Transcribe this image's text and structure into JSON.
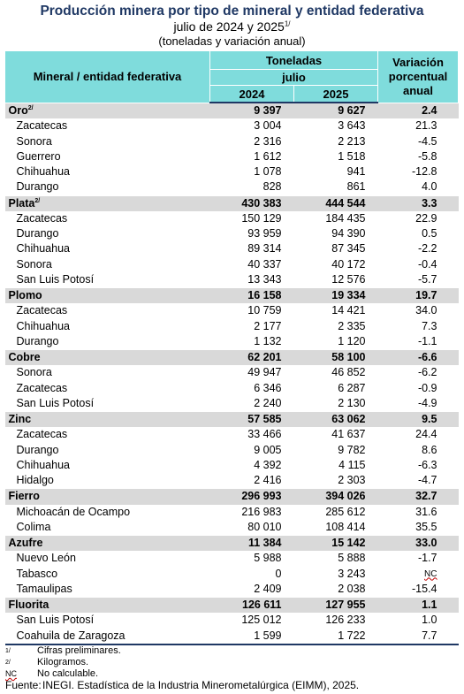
{
  "header": {
    "title": "Producción minera por tipo de mineral y entidad federativa",
    "subtitle": "julio de 2024 y 2025",
    "subtitle_note": "1/",
    "units": "(toneladas y variación anual)"
  },
  "columns": {
    "mineral": "Mineral / entidad federativa",
    "toneladas": "Toneladas",
    "month": "julio",
    "y2024": "2024",
    "y2025": "2025",
    "variacion": "Variación porcentual anual"
  },
  "groups": [
    {
      "name": "Oro",
      "note": "2/",
      "v2024": "9 397",
      "v2025": "9 627",
      "var": "2.4",
      "rows": [
        {
          "name": "Zacatecas",
          "v2024": "3 004",
          "v2025": "3 643",
          "var": "21.3"
        },
        {
          "name": "Sonora",
          "v2024": "2 316",
          "v2025": "2 213",
          "var": "-4.5"
        },
        {
          "name": "Guerrero",
          "v2024": "1 612",
          "v2025": "1 518",
          "var": "-5.8"
        },
        {
          "name": "Chihuahua",
          "v2024": "1 078",
          "v2025": "941",
          "var": "-12.8"
        },
        {
          "name": "Durango",
          "v2024": "828",
          "v2025": "861",
          "var": "4.0"
        }
      ]
    },
    {
      "name": "Plata",
      "note": "2/",
      "v2024": "430 383",
      "v2025": "444 544",
      "var": "3.3",
      "rows": [
        {
          "name": "Zacatecas",
          "v2024": "150 129",
          "v2025": "184 435",
          "var": "22.9"
        },
        {
          "name": "Durango",
          "v2024": "93 959",
          "v2025": "94 390",
          "var": "0.5"
        },
        {
          "name": "Chihuahua",
          "v2024": "89 314",
          "v2025": "87 345",
          "var": "-2.2"
        },
        {
          "name": "Sonora",
          "v2024": "40 337",
          "v2025": "40 172",
          "var": "-0.4"
        },
        {
          "name": "San Luis Potosí",
          "v2024": "13 343",
          "v2025": "12 576",
          "var": "-5.7"
        }
      ]
    },
    {
      "name": "Plomo",
      "note": "",
      "v2024": "16 158",
      "v2025": "19 334",
      "var": "19.7",
      "rows": [
        {
          "name": "Zacatecas",
          "v2024": "10 759",
          "v2025": "14 421",
          "var": "34.0"
        },
        {
          "name": "Chihuahua",
          "v2024": "2 177",
          "v2025": "2 335",
          "var": "7.3"
        },
        {
          "name": "Durango",
          "v2024": "1 132",
          "v2025": "1 120",
          "var": "-1.1"
        }
      ]
    },
    {
      "name": "Cobre",
      "note": "",
      "v2024": "62 201",
      "v2025": "58 100",
      "var": "-6.6",
      "rows": [
        {
          "name": "Sonora",
          "v2024": "49 947",
          "v2025": "46 852",
          "var": "-6.2"
        },
        {
          "name": "Zacatecas",
          "v2024": "6 346",
          "v2025": "6 287",
          "var": "-0.9"
        },
        {
          "name": "San Luis Potosí",
          "v2024": "2 240",
          "v2025": "2 130",
          "var": "-4.9"
        }
      ]
    },
    {
      "name": "Zinc",
      "note": "",
      "v2024": "57 585",
      "v2025": "63 062",
      "var": "9.5",
      "rows": [
        {
          "name": "Zacatecas",
          "v2024": "33 466",
          "v2025": "41 637",
          "var": "24.4"
        },
        {
          "name": "Durango",
          "v2024": "9 005",
          "v2025": "9 782",
          "var": "8.6"
        },
        {
          "name": "Chihuahua",
          "v2024": "4 392",
          "v2025": "4 115",
          "var": "-6.3"
        },
        {
          "name": "Hidalgo",
          "v2024": "2 416",
          "v2025": "2 303",
          "var": "-4.7"
        }
      ]
    },
    {
      "name": "Fierro",
      "note": "",
      "v2024": "296 993",
      "v2025": "394 026",
      "var": "32.7",
      "rows": [
        {
          "name": "Michoacán de Ocampo",
          "v2024": "216 983",
          "v2025": "285 612",
          "var": "31.6"
        },
        {
          "name": "Colima",
          "v2024": "80 010",
          "v2025": "108 414",
          "var": "35.5"
        }
      ]
    },
    {
      "name": "Azufre",
      "note": "",
      "v2024": "11 384",
      "v2025": "15 142",
      "var": "33.0",
      "rows": [
        {
          "name": "Nuevo León",
          "v2024": "5 988",
          "v2025": "5 888",
          "var": "-1.7"
        },
        {
          "name": "Tabasco",
          "v2024": "0",
          "v2025": "3 243",
          "var": "NC"
        },
        {
          "name": "Tamaulipas",
          "v2024": "2 409",
          "v2025": "2 038",
          "var": "-15.4"
        }
      ]
    },
    {
      "name": "Fluorita",
      "note": "",
      "v2024": "126 611",
      "v2025": "127 955",
      "var": "1.1",
      "rows": [
        {
          "name": "San Luis Potosí",
          "v2024": "125 012",
          "v2025": "126 233",
          "var": "1.0"
        },
        {
          "name": "Coahuila de Zaragoza",
          "v2024": "1 599",
          "v2025": "1 722",
          "var": "7.7"
        }
      ]
    }
  ],
  "notes": [
    {
      "key": "1/",
      "text": "Cifras preliminares."
    },
    {
      "key": "2/",
      "text": "Kilogramos."
    },
    {
      "key": "NC",
      "text": "No calculable."
    }
  ],
  "source": {
    "label": "Fuente:",
    "text": "INEGI. Estadística de la Industria Minerometalúrgica (EIMM), 2025."
  }
}
